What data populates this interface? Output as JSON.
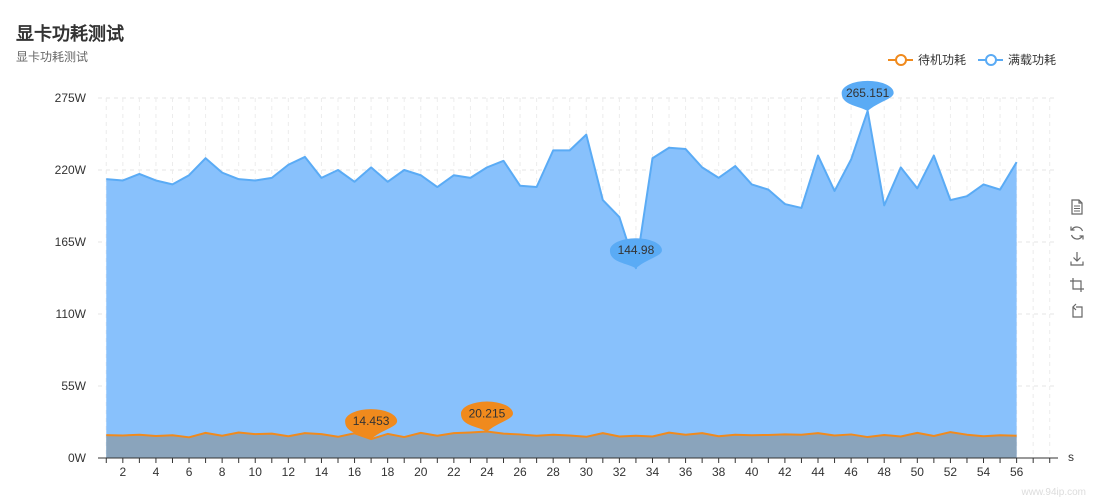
{
  "title": "显卡功耗测试",
  "subtitle": "显卡功耗测试",
  "watermark": "www.94ip.com",
  "colors": {
    "idle": "#F08A1D",
    "full": "#5AABF5",
    "full_area": "#88C1FC",
    "idle_area": "#8AA4BC"
  },
  "toolbox": [
    {
      "icon": "data-view-icon"
    },
    {
      "icon": "restore-icon"
    },
    {
      "icon": "save-image-icon"
    },
    {
      "icon": "zoom-icon"
    },
    {
      "icon": "zoom-reset-icon"
    }
  ],
  "chart_data": {
    "type": "area",
    "x": [
      1,
      2,
      3,
      4,
      5,
      6,
      7,
      8,
      9,
      10,
      11,
      12,
      13,
      14,
      15,
      16,
      17,
      18,
      19,
      20,
      21,
      22,
      23,
      24,
      25,
      26,
      27,
      28,
      29,
      30,
      31,
      32,
      33,
      34,
      35,
      36,
      37,
      38,
      39,
      40,
      41,
      42,
      43,
      44,
      45,
      46,
      47,
      48,
      49,
      50,
      51,
      52,
      53,
      54,
      55,
      56
    ],
    "x_tick_labels": [
      "2",
      "4",
      "6",
      "8",
      "10",
      "12",
      "14",
      "16",
      "18",
      "20",
      "22",
      "24",
      "26",
      "28",
      "30",
      "32",
      "34",
      "36",
      "38",
      "40",
      "42",
      "44",
      "46",
      "48",
      "50",
      "52",
      "54",
      "56"
    ],
    "xlabel": "s",
    "ylabel": "",
    "ylim": [
      0,
      275
    ],
    "y_tick_labels": [
      "0W",
      "55W",
      "110W",
      "165W",
      "220W",
      "275W"
    ],
    "legend": {
      "position": "top-right",
      "labels": [
        "待机功耗",
        "满载功耗"
      ]
    },
    "grid": true,
    "series": [
      {
        "name": "待机功耗",
        "values": [
          17.5,
          17.2,
          17.8,
          16.8,
          17.4,
          15.8,
          19.2,
          17.0,
          19.5,
          18.2,
          18.6,
          16.6,
          19.0,
          18.2,
          16.2,
          18.9,
          14.453,
          18.4,
          16.0,
          19.2,
          17.0,
          19.0,
          19.5,
          20.215,
          18.6,
          18.0,
          17.0,
          17.8,
          17.2,
          16.2,
          19.0,
          16.4,
          17.0,
          16.4,
          19.4,
          17.8,
          19.0,
          16.6,
          17.8,
          17.4,
          17.6,
          18.0,
          17.8,
          19.0,
          17.2,
          18.0,
          16.0,
          17.6,
          16.4,
          19.2,
          16.8,
          19.8,
          17.8,
          16.6,
          17.4,
          17.0
        ],
        "markers": [
          {
            "label": "14.453",
            "x": 17,
            "y": 14.453
          },
          {
            "label": "20.215",
            "x": 24,
            "y": 20.215
          }
        ]
      },
      {
        "name": "满载功耗",
        "values": [
          213,
          212,
          217,
          212,
          209,
          216,
          229,
          218,
          213,
          212,
          214,
          224,
          230,
          214,
          220,
          211,
          222,
          211,
          220,
          216,
          207,
          216,
          214,
          222,
          227,
          208,
          207,
          235,
          235,
          247,
          197,
          184,
          144.98,
          229,
          237,
          236,
          222,
          214,
          223,
          209,
          205,
          194,
          191,
          231,
          204,
          228,
          265.151,
          193,
          222,
          206,
          231,
          197,
          200,
          209,
          205,
          226
        ],
        "markers": [
          {
            "label": "265.151",
            "x": 47,
            "y": 265.151
          },
          {
            "label": "144.98",
            "x": 33,
            "y": 144.98
          }
        ]
      }
    ]
  }
}
